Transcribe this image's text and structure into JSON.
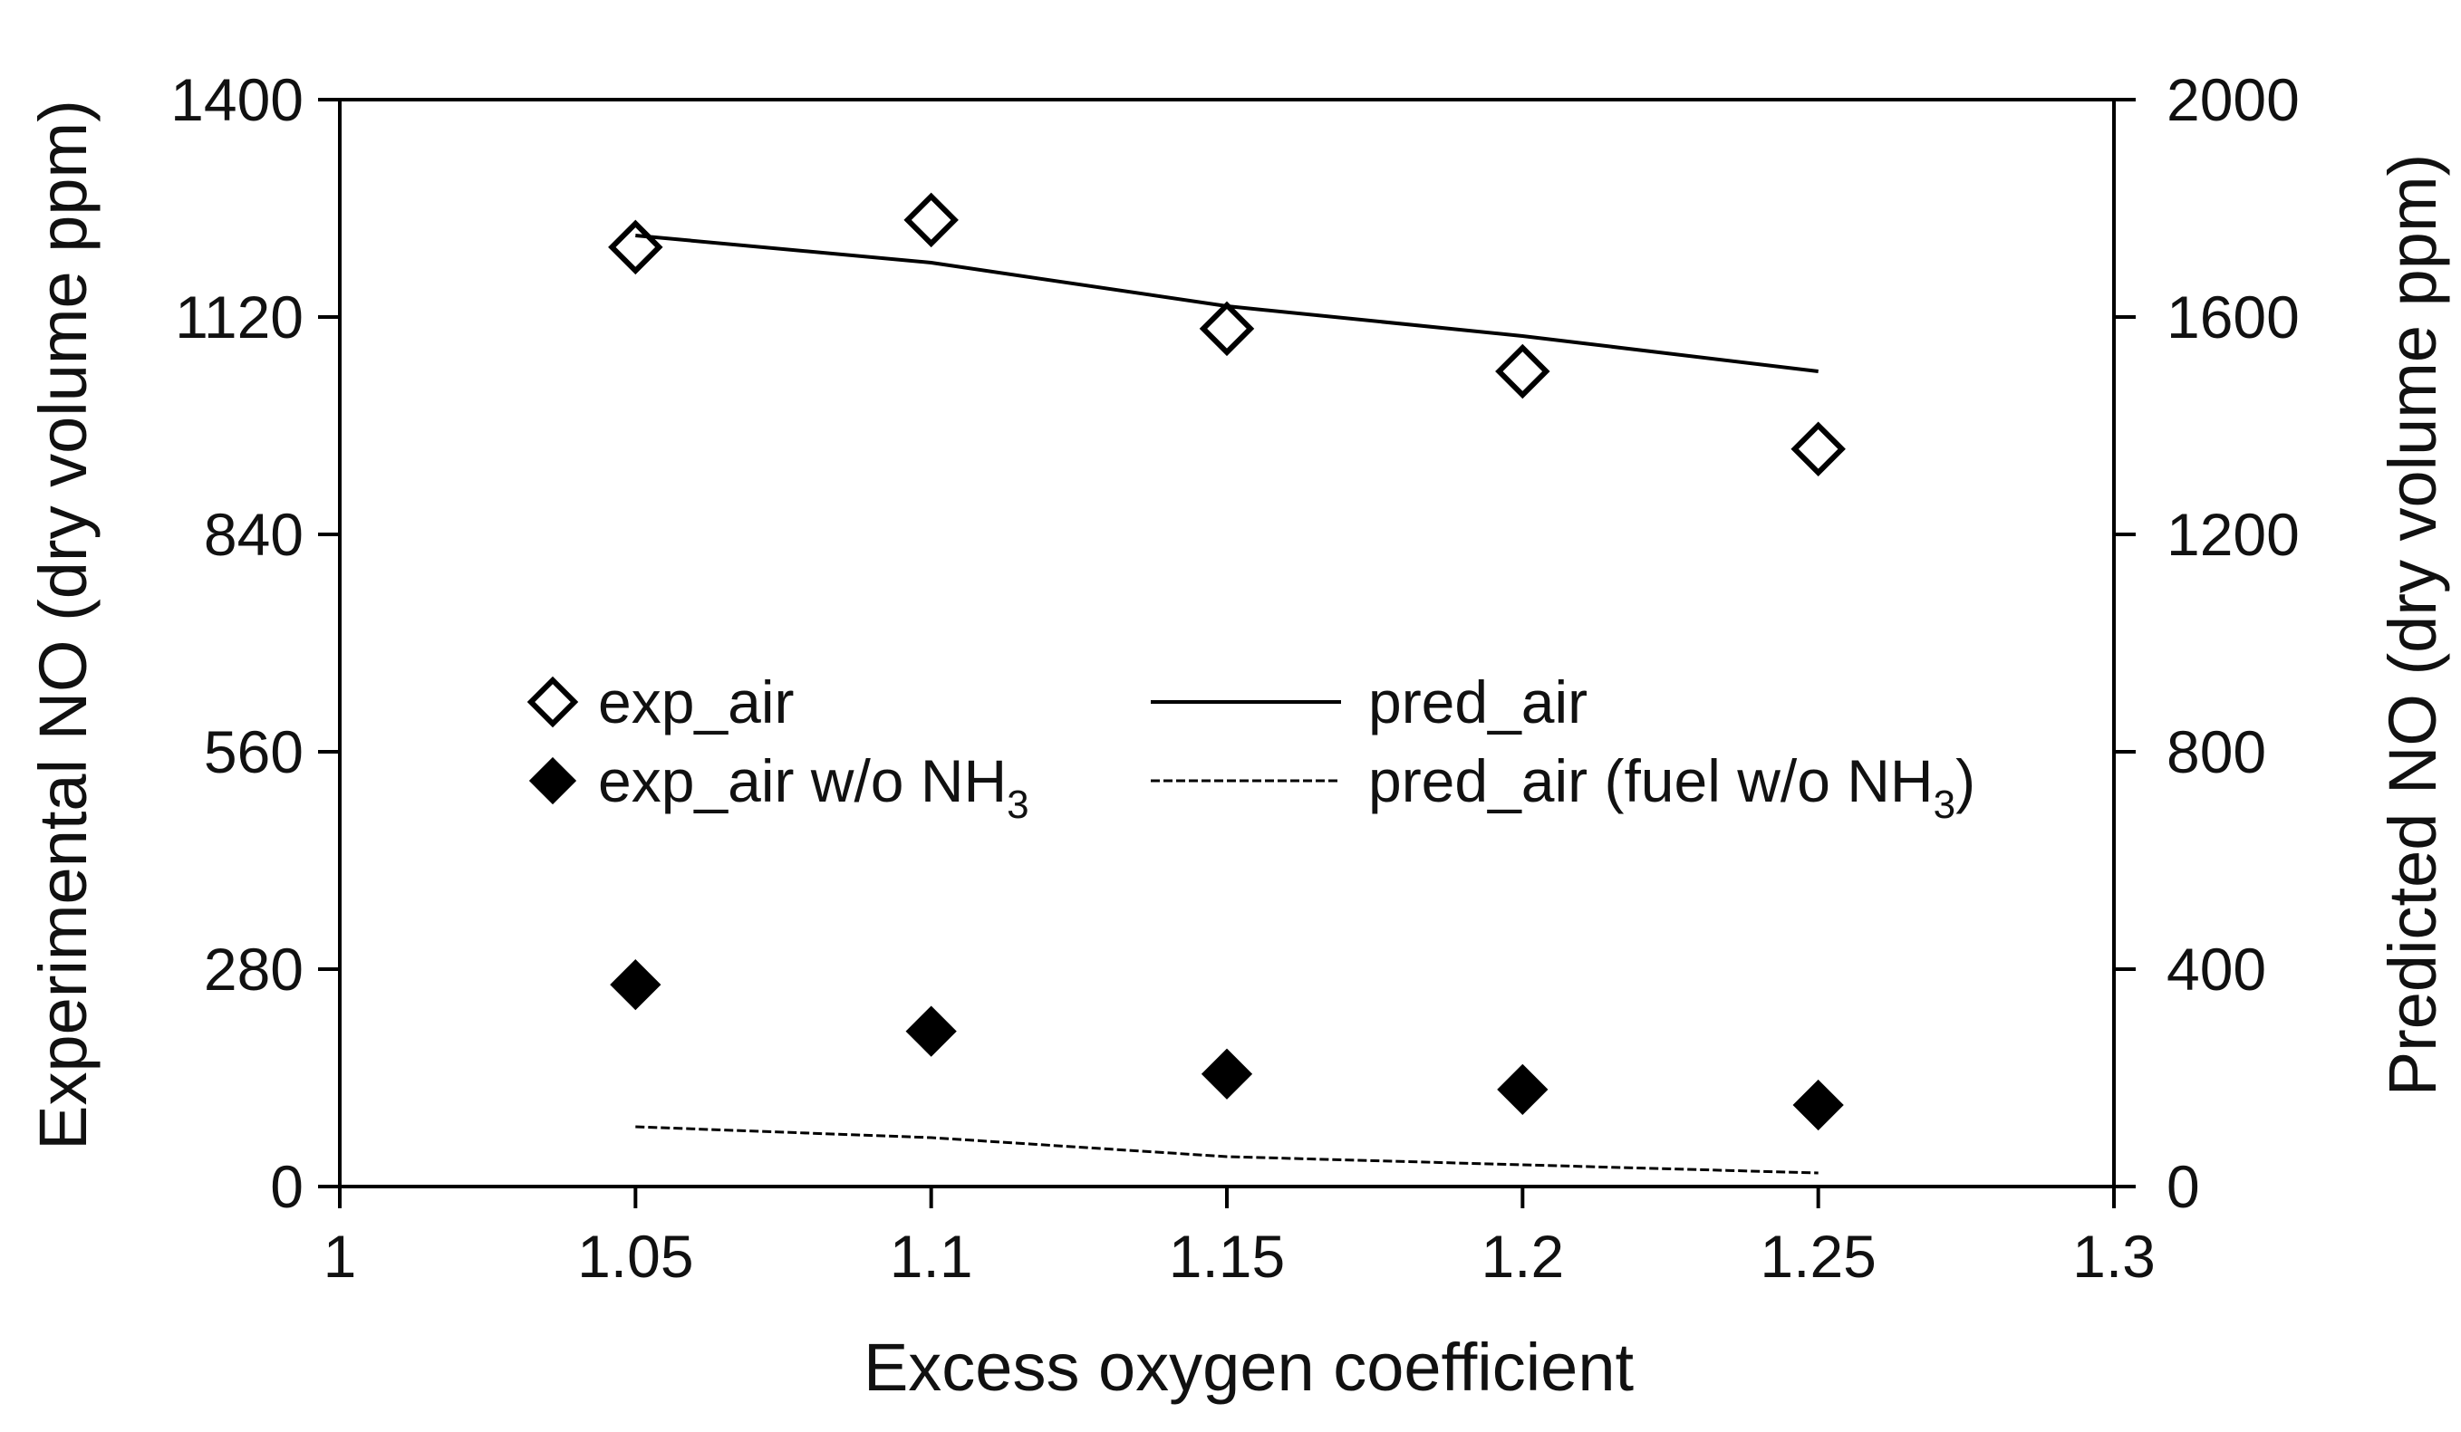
{
  "chart_data": {
    "type": "scatter",
    "title": "",
    "xlabel": "Excess oxygen coefficient",
    "ylabel_left": "Experimental NO (dry volume ppm)",
    "ylabel_right": "Predicted NO (dry volume ppm)",
    "xlim": [
      1,
      1.3
    ],
    "ylim_left": [
      0,
      1400
    ],
    "ylim_right": [
      0,
      2000
    ],
    "x_ticks": [
      "1",
      "1.05",
      "1.1",
      "1.15",
      "1.2",
      "1.25",
      "1.3"
    ],
    "y_left_ticks": [
      "0",
      "280",
      "560",
      "840",
      "1120",
      "1400"
    ],
    "y_right_ticks": [
      "0",
      "400",
      "800",
      "1200",
      "1600",
      "2000"
    ],
    "grid": false,
    "legend_placement": "center-left",
    "series": [
      {
        "name": "exp_air",
        "legend_text": "exp_air",
        "kind": "scatter",
        "marker": "open-diamond",
        "axis": "left",
        "x": [
          1.05,
          1.1,
          1.15,
          1.2,
          1.25
        ],
        "y": [
          1210,
          1245,
          1105,
          1050,
          950
        ]
      },
      {
        "name": "exp_air w/o NH3",
        "legend_text": "exp_air w/o NH",
        "legend_sub": "3",
        "kind": "scatter",
        "marker": "filled-diamond",
        "axis": "left",
        "x": [
          1.05,
          1.1,
          1.15,
          1.2,
          1.25
        ],
        "y": [
          260,
          200,
          145,
          125,
          105
        ]
      },
      {
        "name": "pred_air",
        "legend_text": "pred_air",
        "kind": "line",
        "style": "solid",
        "axis": "right",
        "x": [
          1.05,
          1.1,
          1.15,
          1.2,
          1.25
        ],
        "y": [
          1750,
          1700,
          1620,
          1565,
          1500
        ]
      },
      {
        "name": "pred_air (fuel w/o NH3)",
        "legend_text": "pred_air (fuel w/o NH",
        "legend_sub": "3",
        "legend_tail": ")",
        "kind": "line",
        "style": "dashed",
        "axis": "right",
        "x": [
          1.05,
          1.1,
          1.15,
          1.2,
          1.25
        ],
        "y": [
          110,
          90,
          55,
          40,
          25
        ]
      }
    ],
    "colors": {
      "ink": "#000000",
      "background": "#ffffff"
    }
  }
}
